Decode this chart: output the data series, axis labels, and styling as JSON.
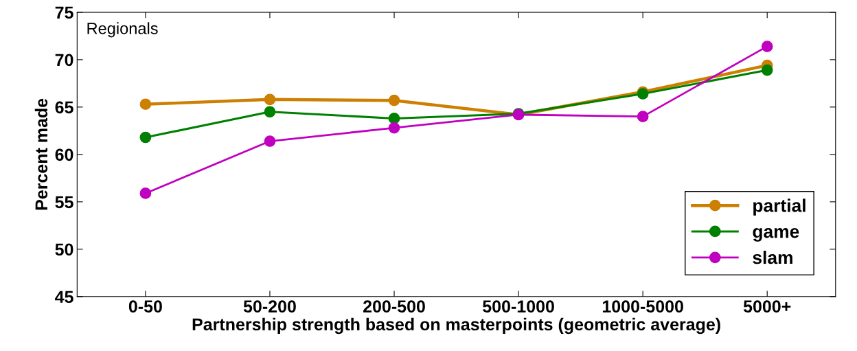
{
  "chart_data": {
    "type": "line",
    "xlabel": "Partnership strength based on masterpoints (geometric average)",
    "ylabel": "Percent made",
    "categories": [
      "0-50",
      "50-200",
      "200-500",
      "500-1000",
      "1000-5000",
      "5000+"
    ],
    "series": [
      {
        "name": "partial",
        "color": "#cc7f00",
        "values": [
          65.3,
          65.8,
          65.7,
          64.2,
          66.6,
          69.4
        ]
      },
      {
        "name": "game",
        "color": "#008000",
        "values": [
          61.8,
          64.5,
          63.8,
          64.3,
          66.4,
          68.9
        ]
      },
      {
        "name": "slam",
        "color": "#c000c0",
        "values": [
          55.9,
          61.4,
          62.8,
          64.2,
          64.0,
          71.4
        ]
      }
    ],
    "ylim": [
      45,
      75
    ],
    "yticks": [
      45,
      50,
      55,
      60,
      65,
      70,
      75
    ],
    "grid": false,
    "legend": "bottom right",
    "marker": "circle",
    "line_style": "solid",
    "annotations": [
      "Regionals"
    ]
  }
}
